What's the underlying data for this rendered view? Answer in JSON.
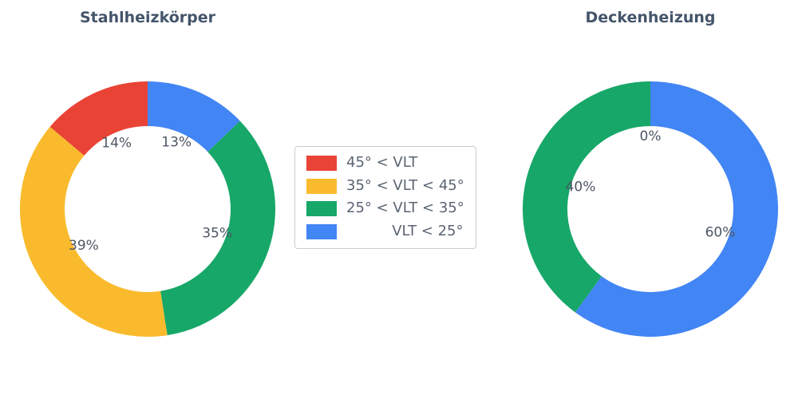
{
  "figure": {
    "background": "#ffffff"
  },
  "colors": {
    "title": "#44546A",
    "percent_label": "#4D5665",
    "legend_text": "#5B6472",
    "legend_border": "#CCCCCC"
  },
  "palette": {
    "red": "#E94336",
    "amber": "#F9BB2D",
    "green": "#17A768",
    "blue": "#4285F4"
  },
  "legend": {
    "items": [
      {
        "color": "red",
        "label": "45° < VLT"
      },
      {
        "color": "amber",
        "label": "35° < VLT < 45°"
      },
      {
        "color": "green",
        "label": "25° < VLT < 35°"
      },
      {
        "color": "blue",
        "label": "          VLT < 25°"
      }
    ]
  },
  "chart_data": [
    {
      "type": "pie",
      "title": "Stahlheizkörper",
      "labels": [
        "45° < VLT",
        "35° < VLT < 45°",
        "25° < VLT < 35°",
        "VLT < 25°"
      ],
      "keys": [
        "red",
        "amber",
        "green",
        "blue"
      ],
      "values": [
        14,
        39,
        35,
        13
      ],
      "value_labels": [
        "14%",
        "39%",
        "35%",
        "13%"
      ],
      "colors": [
        "#E94336",
        "#F9BB2D",
        "#17A768",
        "#4285F4"
      ],
      "hole": 0.65,
      "start_angle": 90,
      "direction": "counterclockwise"
    },
    {
      "type": "pie",
      "title": "Deckenheizung",
      "labels": [
        "45° < VLT",
        "25° < VLT < 35°",
        "VLT < 25°"
      ],
      "keys": [
        "red",
        "green",
        "blue"
      ],
      "values": [
        0,
        40,
        60
      ],
      "value_labels": [
        "0%",
        "40%",
        "60%"
      ],
      "colors": [
        "#E94336",
        "#17A768",
        "#4285F4"
      ],
      "hole": 0.65,
      "start_angle": 90,
      "direction": "counterclockwise"
    }
  ]
}
